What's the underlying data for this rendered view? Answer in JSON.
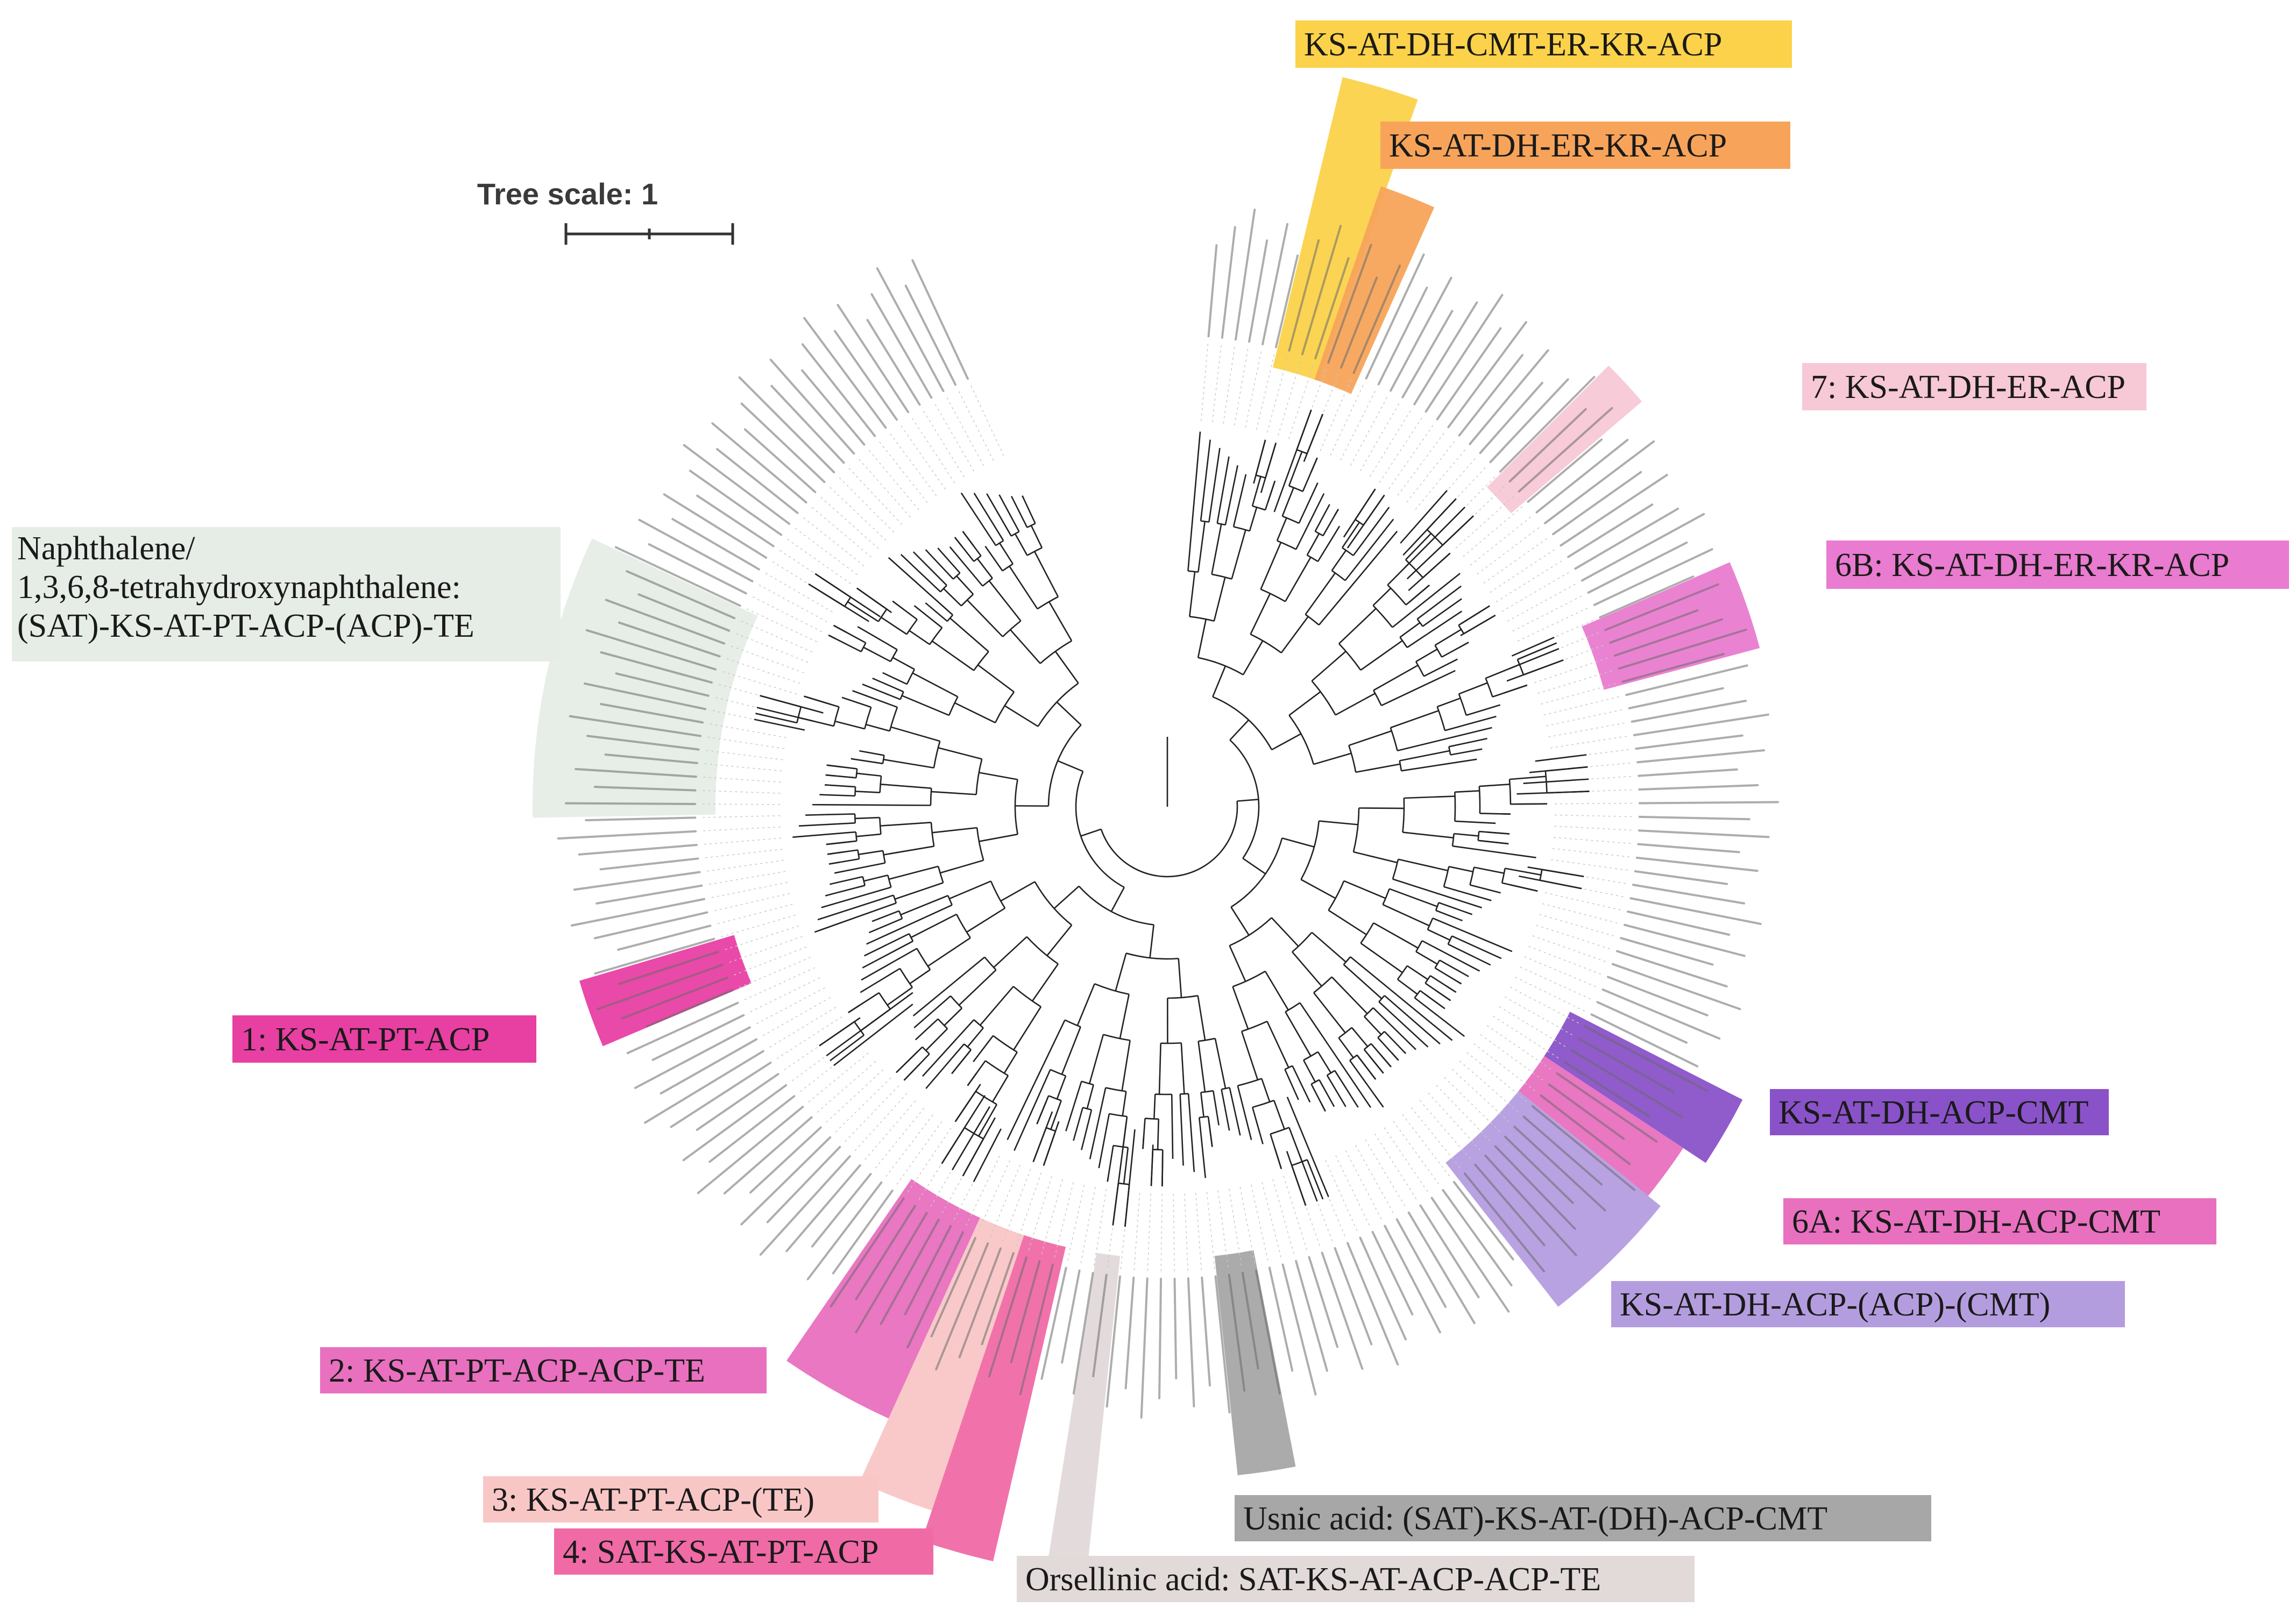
{
  "figure": {
    "scale_label": "Tree scale: 1",
    "leaf_count": 200
  },
  "colors": {
    "yellow": "#fbd24a",
    "orange": "#f7a45a",
    "light_pink": "#f7c8d6",
    "magenta": "#e97bd0",
    "hot_pink": "#e83fa3",
    "pink_ks": "#e870bf",
    "salmon": "#f9c6c6",
    "rose": "#f06aa6",
    "gray": "#a7a7a7",
    "light_gray": "#e2d9d9",
    "purple": "#8a52c8",
    "lavender": "#b49ddf",
    "pale_green": "#e6ece6"
  },
  "clades": [
    {
      "id": "cmt-er",
      "label": "KS-AT-DH-CMT-ER-KR-ACP",
      "color": "yellow"
    },
    {
      "id": "dh-er",
      "label": "KS-AT-DH-ER-KR-ACP",
      "color": "orange"
    },
    {
      "id": "c7",
      "label": "7: KS-AT-DH-ER-ACP",
      "color": "light_pink"
    },
    {
      "id": "c6b",
      "label": "6B: KS-AT-DH-ER-KR-ACP",
      "color": "magenta"
    },
    {
      "id": "naph",
      "label_lines": [
        "Naphthalene/",
        "1,3,6,8-tetrahydroxynaphthalene:",
        "(SAT)-KS-AT-PT-ACP-(ACP)-TE"
      ],
      "color": "pale_green"
    },
    {
      "id": "c1",
      "label": "1: KS-AT-PT-ACP",
      "color": "hot_pink"
    },
    {
      "id": "dh-cmt",
      "label": "KS-AT-DH-ACP-CMT",
      "color": "purple"
    },
    {
      "id": "c6a",
      "label": "6A: KS-AT-DH-ACP-CMT",
      "color": "pink_ks"
    },
    {
      "id": "dh-acp",
      "label": "KS-AT-DH-ACP-(ACP)-(CMT)",
      "color": "lavender"
    },
    {
      "id": "c2",
      "label": "2: KS-AT-PT-ACP-ACP-TE",
      "color": "pink_ks"
    },
    {
      "id": "c3",
      "label": "3: KS-AT-PT-ACP-(TE)",
      "color": "salmon"
    },
    {
      "id": "c4",
      "label": "4: SAT-KS-AT-PT-ACP",
      "color": "rose"
    },
    {
      "id": "usnic",
      "label": "Usnic acid: (SAT)-KS-AT-(DH)-ACP-CMT",
      "color": "gray"
    },
    {
      "id": "orsel",
      "label": "Orsellinic acid: SAT-KS-AT-ACP-ACP-TE",
      "color": "light_gray"
    }
  ]
}
